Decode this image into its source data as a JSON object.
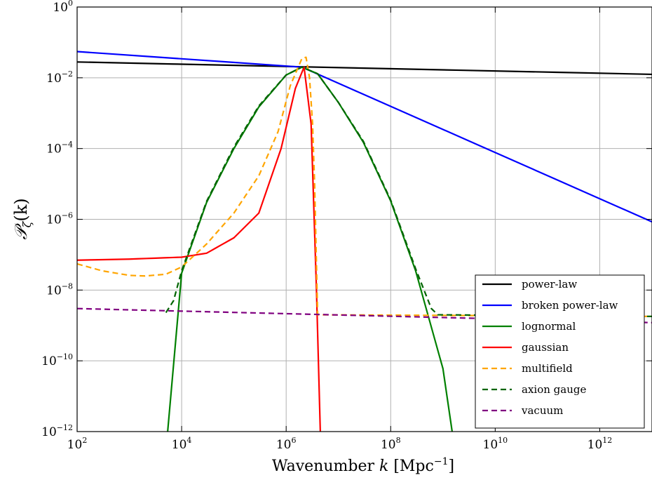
{
  "chart_data": {
    "type": "line",
    "title": "",
    "xlabel": "Wavenumber k [Mpc⁻¹]",
    "xlabel_parts": {
      "prefix": "Wavenumber ",
      "var": "k",
      "unit_open": " [Mpc",
      "unit_exp": "−1",
      "unit_close": "]"
    },
    "ylabel": "Pζ(k)",
    "ylabel_parts": {
      "sym": "𝒫",
      "sub": "ζ",
      "arg": "(k)"
    },
    "xscale": "log",
    "yscale": "log",
    "xlim": [
      100,
      10000000000000.0
    ],
    "ylim": [
      1e-12,
      1
    ],
    "grid": true,
    "legend_position": "lower-right",
    "x_tick_exponents": [
      2,
      4,
      6,
      8,
      10,
      12
    ],
    "y_tick_exponents": [
      0,
      -2,
      -4,
      -6,
      -8,
      -10,
      -12
    ],
    "tick_base": "10",
    "series": [
      {
        "name": "power-law",
        "color": "#000000",
        "dash": "solid",
        "x": [
          100,
          10000000000000.0
        ],
        "y": [
          0.028,
          0.0125
        ]
      },
      {
        "name": "broken power-law",
        "color": "#0000ff",
        "dash": "solid",
        "x": [
          100,
          2000000.0,
          10000000000000.0
        ],
        "y": [
          0.055,
          0.02,
          8.5e-07
        ]
      },
      {
        "name": "lognormal",
        "color": "#008000",
        "dash": "solid",
        "x": [
          5400.0,
          10000.0,
          30000.0,
          100000.0,
          300000.0,
          1000000.0,
          2000000.0,
          4000000.0,
          10000000.0,
          30000000.0,
          100000000.0,
          300000000.0,
          1000000000.0,
          1500000000.0
        ],
        "y": [
          1e-12,
          3e-08,
          3e-06,
          0.0001,
          0.0015,
          0.012,
          0.02,
          0.013,
          0.002,
          0.00015,
          3.3e-06,
          3.5e-08,
          6e-11,
          1e-12
        ]
      },
      {
        "name": "gaussian",
        "color": "#ff0000",
        "dash": "solid",
        "x": [
          100,
          1000.0,
          10000.0,
          30000.0,
          100000.0,
          300000.0,
          800000.0,
          1500000.0,
          2200000.0,
          3000000.0,
          3800000.0,
          4500000.0
        ],
        "y": [
          7e-08,
          7.5e-08,
          8.5e-08,
          1.1e-07,
          3e-07,
          1.5e-06,
          0.0001,
          0.005,
          0.02,
          0.0005,
          1e-08,
          1e-12
        ]
      },
      {
        "name": "multifield",
        "color": "#ffa500",
        "dash": "dashed",
        "x": [
          100,
          300,
          1000.0,
          2000.0,
          5000.0,
          10000.0,
          30000.0,
          100000.0,
          300000.0,
          700000.0,
          1200000.0,
          2000000.0,
          2400000.0,
          2800000.0,
          3200000.0,
          3500000.0,
          4000000.0,
          10000000000000.0
        ],
        "y": [
          5.5e-08,
          3.5e-08,
          2.6e-08,
          2.5e-08,
          2.8e-08,
          4.5e-08,
          2e-07,
          1.5e-06,
          1.7e-05,
          0.0003,
          0.006,
          0.035,
          0.038,
          0.01,
          0.0005,
          1e-05,
          2e-09,
          1.8e-09
        ]
      },
      {
        "name": "axion gauge",
        "color": "#006400",
        "dash": "dashed",
        "x": [
          5000.0,
          7000.0,
          10000.0,
          30000.0,
          100000.0,
          300000.0,
          1000000.0,
          2000000.0,
          4000000.0,
          10000000.0,
          30000000.0,
          100000000.0,
          300000000.0,
          600000000.0,
          800000000.0,
          10000000000000.0
        ],
        "y": [
          2.3e-09,
          5e-09,
          3.5e-08,
          3.2e-06,
          0.00011,
          0.0016,
          0.012,
          0.02,
          0.013,
          0.002,
          0.00016,
          3.5e-06,
          4e-08,
          3e-09,
          2e-09,
          1.8e-09
        ]
      },
      {
        "name": "vacuum",
        "color": "#800080",
        "dash": "dashed",
        "x": [
          100,
          10000000000000.0
        ],
        "y": [
          3e-09,
          1.2e-09
        ]
      }
    ]
  }
}
